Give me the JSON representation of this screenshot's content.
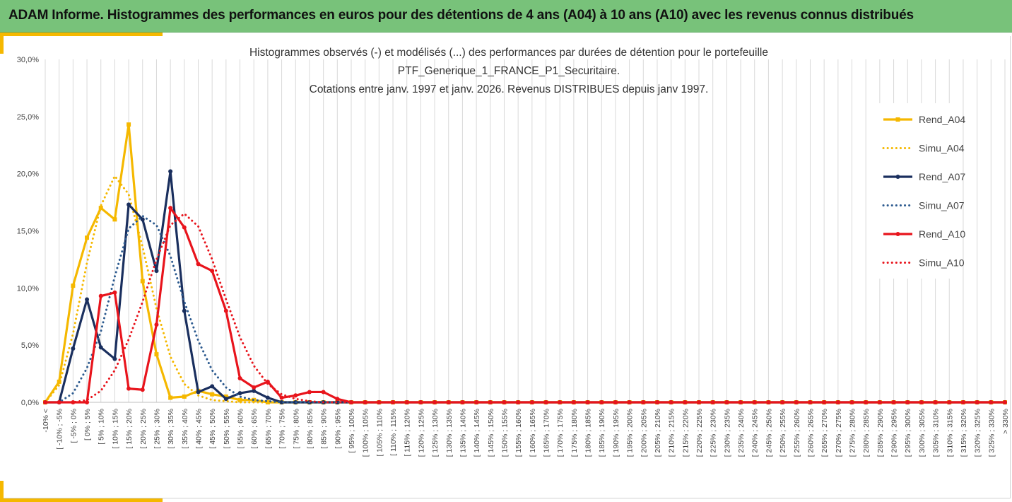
{
  "header": {
    "title": "ADAM Informe. Histogrammes des performances en euros pour des détentions de 4 ans (A04) à 10 ans (A10) avec les revenus connus distribués"
  },
  "colors": {
    "banner": "#78c27a",
    "accent": "#f5b800"
  },
  "chart_data": {
    "type": "line",
    "title_lines": [
      "Histogrammes observés (-) et modélisés (...) des performances par durées de détention pour le portefeuille",
      "PTF_Generique_1_FRANCE_P1_Securitaire.",
      "Cotations entre janv. 1997 et janv. 2026. Revenus DISTRIBUES depuis janv 1997."
    ],
    "xlabel": "",
    "ylabel": "",
    "ylim": [
      0,
      0.3
    ],
    "y_ticks": [
      "0,0%",
      "5,0%",
      "10,0%",
      "15,0%",
      "20,0%",
      "25,0%",
      "30,0%"
    ],
    "grid": "vertical",
    "legend_position": "right",
    "categories": [
      "-10% <",
      "[ -10% ; -5%",
      "[ -5% ; 0%",
      "[ 0% ; 5%",
      "[ 5% ; 10%",
      "[ 10% ; 15%",
      "[ 15% ; 20%",
      "[ 20% ; 25%",
      "[ 25% ; 30%",
      "[ 30% ; 35%",
      "[ 35% ; 40%",
      "[ 40% ; 45%",
      "[ 45% ; 50%",
      "[ 50% ; 55%",
      "[ 55% ; 60%",
      "[ 60% ; 65%",
      "[ 65% ; 70%",
      "[ 70% ; 75%",
      "[ 75% ; 80%",
      "[ 80% ; 85%",
      "[ 85% ; 90%",
      "[ 90% ; 95%",
      "[ 95% ; 100%",
      "[ 100% ; 105%",
      "[ 105% ; 110%",
      "[ 110% ; 115%",
      "[ 115% ; 120%",
      "[ 120% ; 125%",
      "[ 125% ; 130%",
      "[ 130% ; 135%",
      "[ 135% ; 140%",
      "[ 140% ; 145%",
      "[ 145% ; 150%",
      "[ 150% ; 155%",
      "[ 155% ; 160%",
      "[ 160% ; 165%",
      "[ 165% ; 170%",
      "[ 170% ; 175%",
      "[ 175% ; 180%",
      "[ 180% ; 185%",
      "[ 185% ; 190%",
      "[ 190% ; 195%",
      "[ 195% ; 200%",
      "[ 200% ; 205%",
      "[ 205% ; 210%",
      "[ 210% ; 215%",
      "[ 215% ; 220%",
      "[ 220% ; 225%",
      "[ 225% ; 230%",
      "[ 230% ; 235%",
      "[ 235% ; 240%",
      "[ 240% ; 245%",
      "[ 245% ; 250%",
      "[ 250% ; 255%",
      "[ 255% ; 260%",
      "[ 260% ; 265%",
      "[ 265% ; 270%",
      "[ 270% ; 275%",
      "[ 275% ; 280%",
      "[ 280% ; 285%",
      "[ 285% ; 290%",
      "[ 290% ; 295%",
      "[ 295% ; 300%",
      "[ 300% ; 305%",
      "[ 305% ; 310%",
      "[ 310% ; 315%",
      "[ 315% ; 320%",
      "[ 320% ; 325%",
      "[ 325% ; 330%",
      "> 330%"
    ],
    "series": [
      {
        "name": "Rend_A04",
        "color": "#f5b800",
        "style": "solid",
        "marker": "square",
        "values": [
          0.0,
          0.018,
          0.102,
          0.144,
          0.17,
          0.16,
          0.243,
          0.106,
          0.042,
          0.004,
          0.005,
          0.01,
          0.007,
          0.005,
          0.002,
          0.002,
          0.0,
          0.0,
          0.0,
          0.0,
          0.0,
          0.0,
          0.0,
          0.0,
          0.0,
          0.0,
          0.0,
          0.0,
          0.0,
          0.0,
          0.0,
          0.0,
          0.0,
          0.0,
          0.0,
          0.0,
          0.0,
          0.0,
          0.0,
          0.0,
          0.0,
          0.0,
          0.0,
          0.0,
          0.0,
          0.0,
          0.0,
          0.0,
          0.0,
          0.0,
          0.0,
          0.0,
          0.0,
          0.0,
          0.0,
          0.0,
          0.0,
          0.0,
          0.0,
          0.0,
          0.0,
          0.0,
          0.0,
          0.0,
          0.0,
          0.0,
          0.0,
          0.0,
          0.0,
          0.0
        ]
      },
      {
        "name": "Simu_A04",
        "color": "#f5b800",
        "style": "dotted",
        "marker": "none",
        "values": [
          0.0,
          0.015,
          0.06,
          0.122,
          0.172,
          0.198,
          0.182,
          0.136,
          0.082,
          0.04,
          0.016,
          0.006,
          0.002,
          0.001,
          0.0,
          0.0,
          0.0,
          0.0,
          0.0,
          0.0,
          0.0,
          0.0,
          0.0,
          0.0,
          0.0,
          0.0,
          0.0,
          0.0,
          0.0,
          0.0,
          0.0,
          0.0,
          0.0,
          0.0,
          0.0,
          0.0,
          0.0,
          0.0,
          0.0,
          0.0,
          0.0,
          0.0,
          0.0,
          0.0,
          0.0,
          0.0,
          0.0,
          0.0,
          0.0,
          0.0,
          0.0,
          0.0,
          0.0,
          0.0,
          0.0,
          0.0,
          0.0,
          0.0,
          0.0,
          0.0,
          0.0,
          0.0,
          0.0,
          0.0,
          0.0,
          0.0,
          0.0,
          0.0,
          0.0,
          0.0
        ]
      },
      {
        "name": "Rend_A07",
        "color": "#1a2f5e",
        "style": "solid",
        "marker": "circle",
        "values": [
          0.0,
          0.0,
          0.047,
          0.09,
          0.048,
          0.038,
          0.173,
          0.16,
          0.115,
          0.202,
          0.08,
          0.009,
          0.014,
          0.003,
          0.008,
          0.01,
          0.004,
          0.0,
          0.0,
          0.0,
          0.0,
          0.0,
          0.0,
          0.0,
          0.0,
          0.0,
          0.0,
          0.0,
          0.0,
          0.0,
          0.0,
          0.0,
          0.0,
          0.0,
          0.0,
          0.0,
          0.0,
          0.0,
          0.0,
          0.0,
          0.0,
          0.0,
          0.0,
          0.0,
          0.0,
          0.0,
          0.0,
          0.0,
          0.0,
          0.0,
          0.0,
          0.0,
          0.0,
          0.0,
          0.0,
          0.0,
          0.0,
          0.0,
          0.0,
          0.0,
          0.0,
          0.0,
          0.0,
          0.0,
          0.0,
          0.0,
          0.0,
          0.0,
          0.0,
          0.0
        ]
      },
      {
        "name": "Simu_A07",
        "color": "#2c5a8f",
        "style": "dotted",
        "marker": "none",
        "values": [
          0.0,
          0.0,
          0.008,
          0.03,
          0.062,
          0.11,
          0.152,
          0.163,
          0.155,
          0.128,
          0.088,
          0.054,
          0.028,
          0.013,
          0.005,
          0.002,
          0.001,
          0.0,
          0.0,
          0.0,
          0.0,
          0.0,
          0.0,
          0.0,
          0.0,
          0.0,
          0.0,
          0.0,
          0.0,
          0.0,
          0.0,
          0.0,
          0.0,
          0.0,
          0.0,
          0.0,
          0.0,
          0.0,
          0.0,
          0.0,
          0.0,
          0.0,
          0.0,
          0.0,
          0.0,
          0.0,
          0.0,
          0.0,
          0.0,
          0.0,
          0.0,
          0.0,
          0.0,
          0.0,
          0.0,
          0.0,
          0.0,
          0.0,
          0.0,
          0.0,
          0.0,
          0.0,
          0.0,
          0.0,
          0.0,
          0.0,
          0.0,
          0.0,
          0.0,
          0.0
        ]
      },
      {
        "name": "Rend_A10",
        "color": "#e8141c",
        "style": "solid",
        "marker": "circle",
        "values": [
          0.0,
          0.0,
          0.0,
          0.0,
          0.093,
          0.096,
          0.012,
          0.011,
          0.068,
          0.17,
          0.153,
          0.121,
          0.115,
          0.08,
          0.021,
          0.013,
          0.018,
          0.004,
          0.006,
          0.009,
          0.009,
          0.003,
          0.0,
          0.0,
          0.0,
          0.0,
          0.0,
          0.0,
          0.0,
          0.0,
          0.0,
          0.0,
          0.0,
          0.0,
          0.0,
          0.0,
          0.0,
          0.0,
          0.0,
          0.0,
          0.0,
          0.0,
          0.0,
          0.0,
          0.0,
          0.0,
          0.0,
          0.0,
          0.0,
          0.0,
          0.0,
          0.0,
          0.0,
          0.0,
          0.0,
          0.0,
          0.0,
          0.0,
          0.0,
          0.0,
          0.0,
          0.0,
          0.0,
          0.0,
          0.0,
          0.0,
          0.0,
          0.0,
          0.0,
          0.0
        ]
      },
      {
        "name": "Simu_A10",
        "color": "#e8141c",
        "style": "dotted",
        "marker": "none",
        "values": [
          0.0,
          0.0,
          0.0,
          0.002,
          0.01,
          0.028,
          0.055,
          0.088,
          0.125,
          0.155,
          0.165,
          0.154,
          0.125,
          0.09,
          0.057,
          0.032,
          0.016,
          0.007,
          0.003,
          0.001,
          0.0,
          0.0,
          0.0,
          0.0,
          0.0,
          0.0,
          0.0,
          0.0,
          0.0,
          0.0,
          0.0,
          0.0,
          0.0,
          0.0,
          0.0,
          0.0,
          0.0,
          0.0,
          0.0,
          0.0,
          0.0,
          0.0,
          0.0,
          0.0,
          0.0,
          0.0,
          0.0,
          0.0,
          0.0,
          0.0,
          0.0,
          0.0,
          0.0,
          0.0,
          0.0,
          0.0,
          0.0,
          0.0,
          0.0,
          0.0,
          0.0,
          0.0,
          0.0,
          0.0,
          0.0,
          0.0,
          0.0,
          0.0,
          0.0,
          0.0
        ]
      }
    ]
  }
}
